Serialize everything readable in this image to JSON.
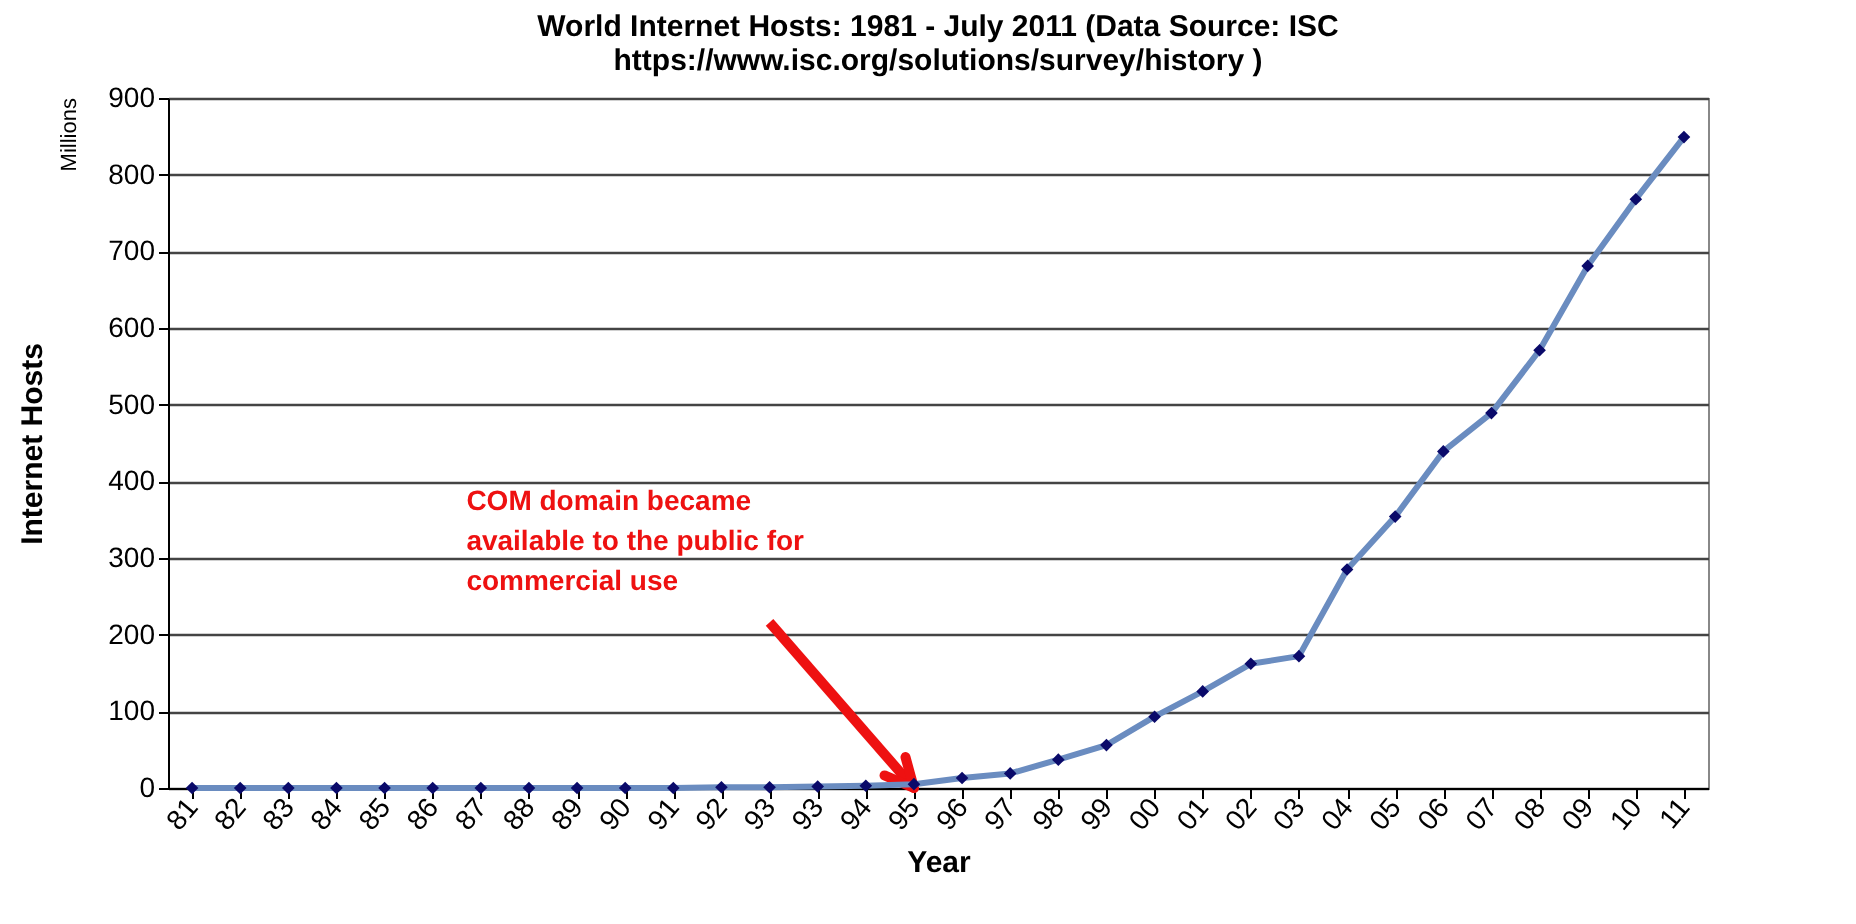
{
  "chart_data": {
    "type": "line",
    "title": [
      "World Internet Hosts: 1981 - July 2011 (Data Source: ISC",
      "https://www.isc.org/solutions/survey/history )"
    ],
    "xlabel": "Year",
    "ylabel": "Internet Hosts",
    "categories": [
      "81",
      "82",
      "83",
      "84",
      "85",
      "86",
      "87",
      "88",
      "89",
      "90",
      "91",
      "92",
      "93",
      "93",
      "94",
      "95",
      "96",
      "97",
      "98",
      "99",
      "00",
      "01",
      "02",
      "03",
      "04",
      "05",
      "06",
      "07",
      "08",
      "09",
      "10",
      "11"
    ],
    "series": [
      {
        "color": "#6a8cc0",
        "values": [
          0,
          0,
          0,
          0,
          0,
          0,
          0,
          0,
          0,
          0,
          0,
          1,
          1,
          2,
          3,
          5,
          13,
          19,
          37,
          56,
          93,
          126,
          162,
          172,
          285,
          354,
          439,
          489,
          571,
          681,
          768,
          849
        ]
      }
    ],
    "ylim": [
      0,
      900
    ],
    "yticks": [
      0,
      100,
      200,
      300,
      400,
      500,
      600,
      700,
      800,
      900
    ],
    "grid": "y",
    "marker": "diamond",
    "line_style": "solid",
    "annotations": [
      "Millions",
      {
        "text": "COM domain became\navailable to the public for\ncommercial use",
        "x": "95",
        "y": 0
      }
    ]
  }
}
